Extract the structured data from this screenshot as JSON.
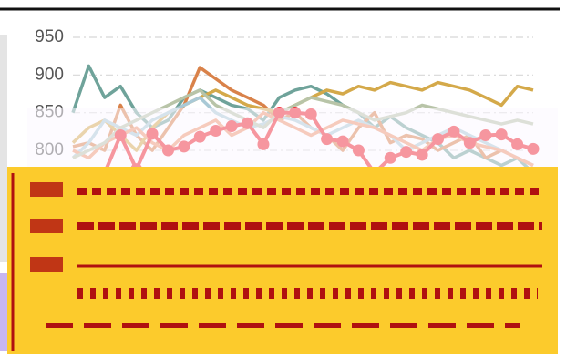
{
  "chart_data": {
    "type": "line",
    "ylim": [
      750,
      960
    ],
    "yticks": [
      800,
      850,
      900,
      950
    ],
    "grid": true,
    "series": [
      {
        "color": "#6fa39a",
        "values": [
          850,
          912,
          870,
          885,
          850,
          830,
          840,
          870,
          880,
          870,
          860,
          855,
          840,
          870,
          880,
          885,
          875,
          860,
          850,
          830,
          845,
          830,
          820,
          810,
          790,
          800,
          790,
          780,
          790,
          770
        ]
      },
      {
        "color": "#d9824a",
        "values": [
          805,
          810,
          800,
          860,
          820,
          800,
          830,
          860,
          910,
          895,
          880,
          870,
          860,
          840,
          850,
          830,
          820,
          800,
          830,
          850,
          810,
          820,
          815,
          800,
          810,
          820,
          790,
          800,
          790,
          780
        ]
      },
      {
        "color": "#d4a94a",
        "values": [
          810,
          830,
          840,
          820,
          800,
          830,
          850,
          860,
          870,
          880,
          870,
          860,
          855,
          850,
          860,
          870,
          880,
          875,
          885,
          880,
          890,
          885,
          880,
          890,
          885,
          880,
          870,
          860,
          885,
          880
        ]
      },
      {
        "color": "#a9c9d6",
        "values": [
          790,
          810,
          840,
          830,
          820,
          840,
          850,
          860,
          870,
          850,
          840,
          830,
          835,
          845,
          840,
          830,
          820,
          830,
          840,
          830,
          820,
          800,
          810,
          820,
          830,
          820,
          810,
          800,
          790,
          780
        ]
      },
      {
        "color": "#f0956e",
        "values": [
          800,
          790,
          810,
          820,
          830,
          810,
          800,
          820,
          830,
          840,
          820,
          830,
          850,
          840,
          830,
          820,
          830,
          840,
          835,
          830,
          820,
          810,
          800,
          815,
          820,
          810,
          805,
          800,
          790,
          780
        ]
      },
      {
        "color": "#b8c4a8",
        "values": [
          790,
          800,
          810,
          830,
          840,
          850,
          860,
          870,
          880,
          860,
          850,
          840,
          830,
          850,
          860,
          870,
          865,
          860,
          850,
          840,
          845,
          850,
          860,
          855,
          850,
          845,
          840,
          835,
          840,
          835
        ]
      },
      {
        "color": "#f0202a",
        "markers": true,
        "values": [
          null,
          null,
          770,
          820,
          775,
          822,
          800,
          805,
          818,
          826,
          832,
          836,
          808,
          850,
          850,
          848,
          815,
          812,
          800,
          770,
          790,
          798,
          794,
          815,
          825,
          810,
          820,
          821,
          808,
          802
        ]
      }
    ]
  }
}
